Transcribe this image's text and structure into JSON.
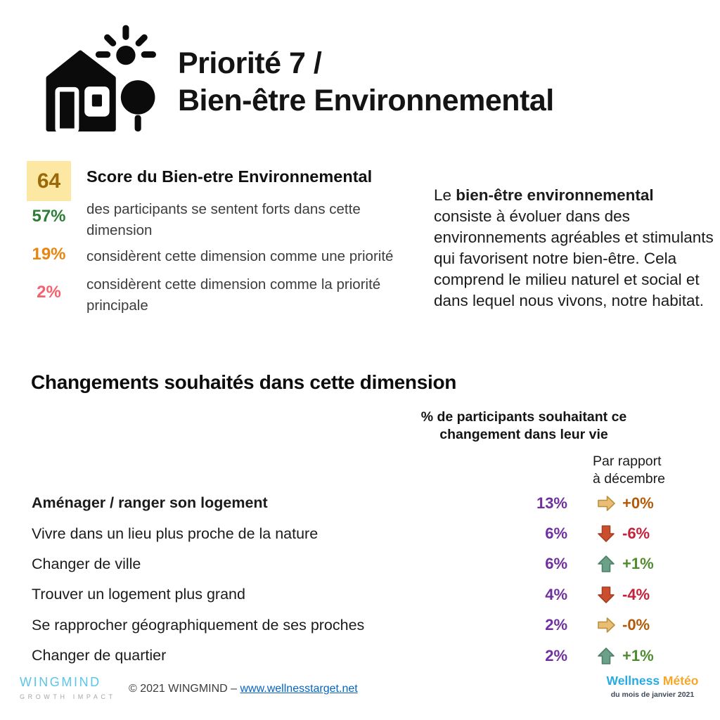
{
  "header": {
    "title_line1": "Priorité 7 /",
    "title_line2": "Bien-être Environnemental"
  },
  "score_panel": {
    "score_value": "64",
    "score_bg": "#FCE8A2",
    "score_color": "#9B6A08",
    "score_label": "Score du Bien-etre Environnemental",
    "stats": [
      {
        "value": "57%",
        "color": "#2E7D36",
        "text": "des participants se sentent forts dans cette dimension"
      },
      {
        "value": "19%",
        "color": "#E8850F",
        "text": "considèrent cette dimension comme une priorité"
      },
      {
        "value": "2%",
        "color": "#F4626F",
        "text": "considèrent cette dimension comme la priorité principale"
      }
    ]
  },
  "description": {
    "lead": "Le ",
    "bold": "bien-être environnemental",
    "rest": " consiste à évoluer dans des environnements agréables et stimulants qui favorisent notre bien-être. Cela comprend le milieu naturel et social et dans lequel nous vivons, notre habitat."
  },
  "changes_section": {
    "title": "Changements souhaités dans cette dimension",
    "col_participants": "% de participants souhaitant ce changement dans leur vie",
    "col_comparison": "Par rapport\nà décembre",
    "percent_color": "#7030A0",
    "trend_colors": {
      "flat": "#B25A08",
      "down": "#C5203C",
      "up": "#4F8C2F"
    },
    "trend_arrows": {
      "flat": {
        "fill": "#E9BD74",
        "stroke": "#B9913E"
      },
      "down": {
        "fill": "#CB4F2E",
        "stroke": "#A53E20"
      },
      "up": {
        "fill": "#6BA188",
        "stroke": "#4B7F66"
      }
    },
    "rows": [
      {
        "label": "Aménager / ranger son logement",
        "bold": true,
        "percent": "13%",
        "trend": "flat",
        "change": "+0%"
      },
      {
        "label": "Vivre dans un lieu plus proche de la nature",
        "bold": false,
        "percent": "6%",
        "trend": "down",
        "change": "-6%"
      },
      {
        "label": "Changer de ville",
        "bold": false,
        "percent": "6%",
        "trend": "up",
        "change": "+1%"
      },
      {
        "label": "Trouver un logement plus grand",
        "bold": false,
        "percent": "4%",
        "trend": "down",
        "change": "-4%"
      },
      {
        "label": "Se rapprocher géographiquement de ses proches",
        "bold": false,
        "percent": "2%",
        "trend": "flat",
        "change": "-0%"
      },
      {
        "label": "Changer de quartier",
        "bold": false,
        "percent": "2%",
        "trend": "up",
        "change": "+1%"
      }
    ]
  },
  "footer": {
    "wingmind_name": "WINGMIND",
    "wingmind_tagline": "GROWTH IMPACT",
    "copyright": "© 2021 WINGMIND  – ",
    "link": "www.wellnesstarget.net",
    "wellness_part1": "Wellness ",
    "wellness_part2": "Météo",
    "wellness_subtitle": "du mois de janvier 2021"
  }
}
